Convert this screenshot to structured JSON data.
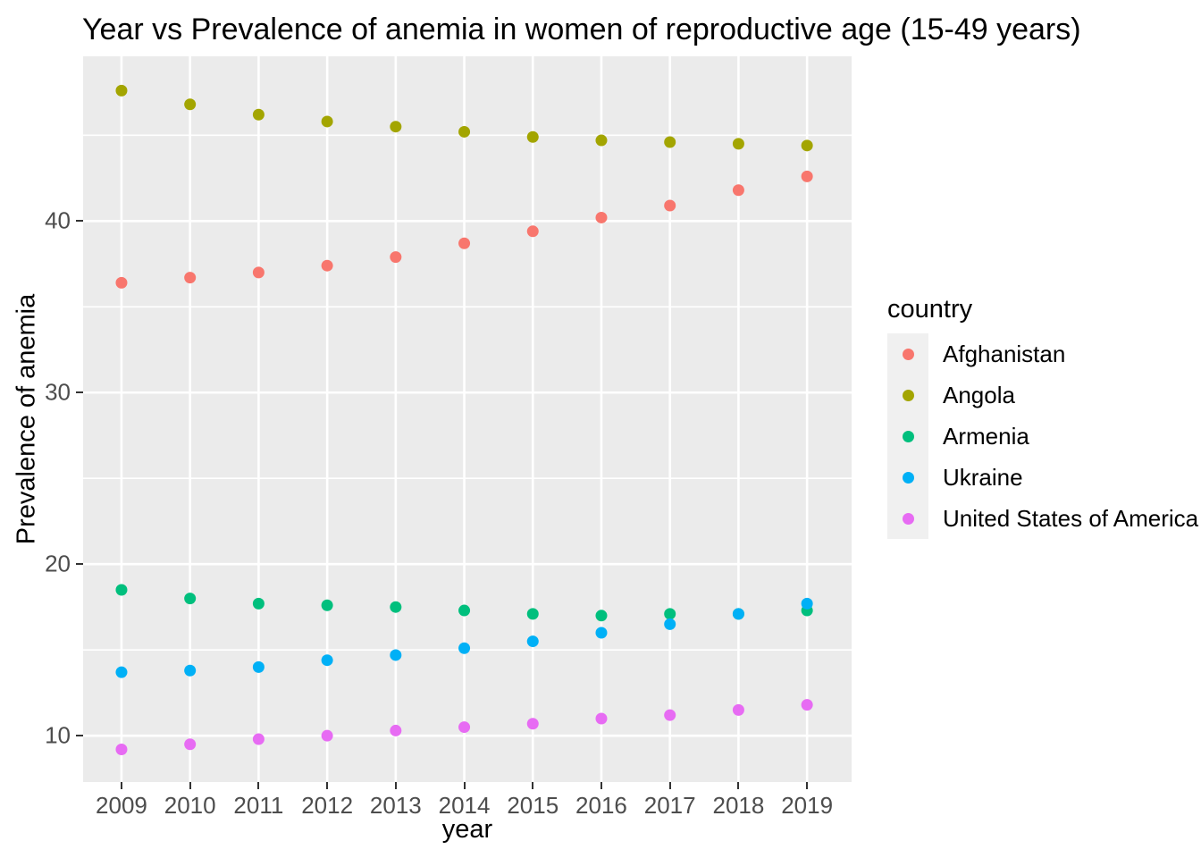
{
  "chart_data": {
    "type": "scatter",
    "title": "Year vs Prevalence of anemia in women of reproductive age (15-49 years)",
    "xlabel": "year",
    "ylabel": "Prevalence of anemia",
    "x": [
      2009,
      2010,
      2011,
      2012,
      2013,
      2014,
      2015,
      2016,
      2017,
      2018,
      2019
    ],
    "series": [
      {
        "name": "Afghanistan",
        "color": "#F8766D",
        "values": [
          36.4,
          36.7,
          37.0,
          37.4,
          37.9,
          38.7,
          39.4,
          40.2,
          40.9,
          41.8,
          42.6
        ]
      },
      {
        "name": "Angola",
        "color": "#A3A500",
        "values": [
          47.6,
          46.8,
          46.2,
          45.8,
          45.5,
          45.2,
          44.9,
          44.7,
          44.6,
          44.5,
          44.4
        ]
      },
      {
        "name": "Armenia",
        "color": "#00BF7D",
        "values": [
          18.5,
          18.0,
          17.7,
          17.6,
          17.5,
          17.3,
          17.1,
          17.0,
          17.1,
          17.1,
          17.3
        ]
      },
      {
        "name": "Ukraine",
        "color": "#00B0F6",
        "values": [
          13.7,
          13.8,
          14.0,
          14.4,
          14.7,
          15.1,
          15.5,
          16.0,
          16.5,
          17.1,
          17.7
        ]
      },
      {
        "name": "United States of America",
        "color": "#E76BF3",
        "values": [
          9.2,
          9.5,
          9.8,
          10.0,
          10.3,
          10.5,
          10.7,
          11.0,
          11.2,
          11.5,
          11.8
        ]
      }
    ],
    "x_ticks": [
      2009,
      2010,
      2011,
      2012,
      2013,
      2014,
      2015,
      2016,
      2017,
      2018,
      2019
    ],
    "y_ticks": [
      10,
      20,
      30,
      40
    ],
    "y_minor_ticks": [
      15,
      25,
      35,
      45
    ],
    "xlim": [
      2008.44,
      2019.65
    ],
    "ylim": [
      7.3,
      49.6
    ],
    "grid": "major-and-minor-horizontal, major-vertical, white on grey panel",
    "legend": {
      "title": "country",
      "position": "right",
      "entries": [
        "Afghanistan",
        "Angola",
        "Armenia",
        "Ukraine",
        "United States of America"
      ]
    },
    "colors": {
      "panel_bg": "#EBEBEB",
      "grid": "#FFFFFF",
      "plot_bg": "#FFFFFF",
      "tick_label": "#4D4D4D",
      "tick_mark": "#333333",
      "text": "#000000",
      "legend_key_bg": "#F0F0F0"
    }
  }
}
